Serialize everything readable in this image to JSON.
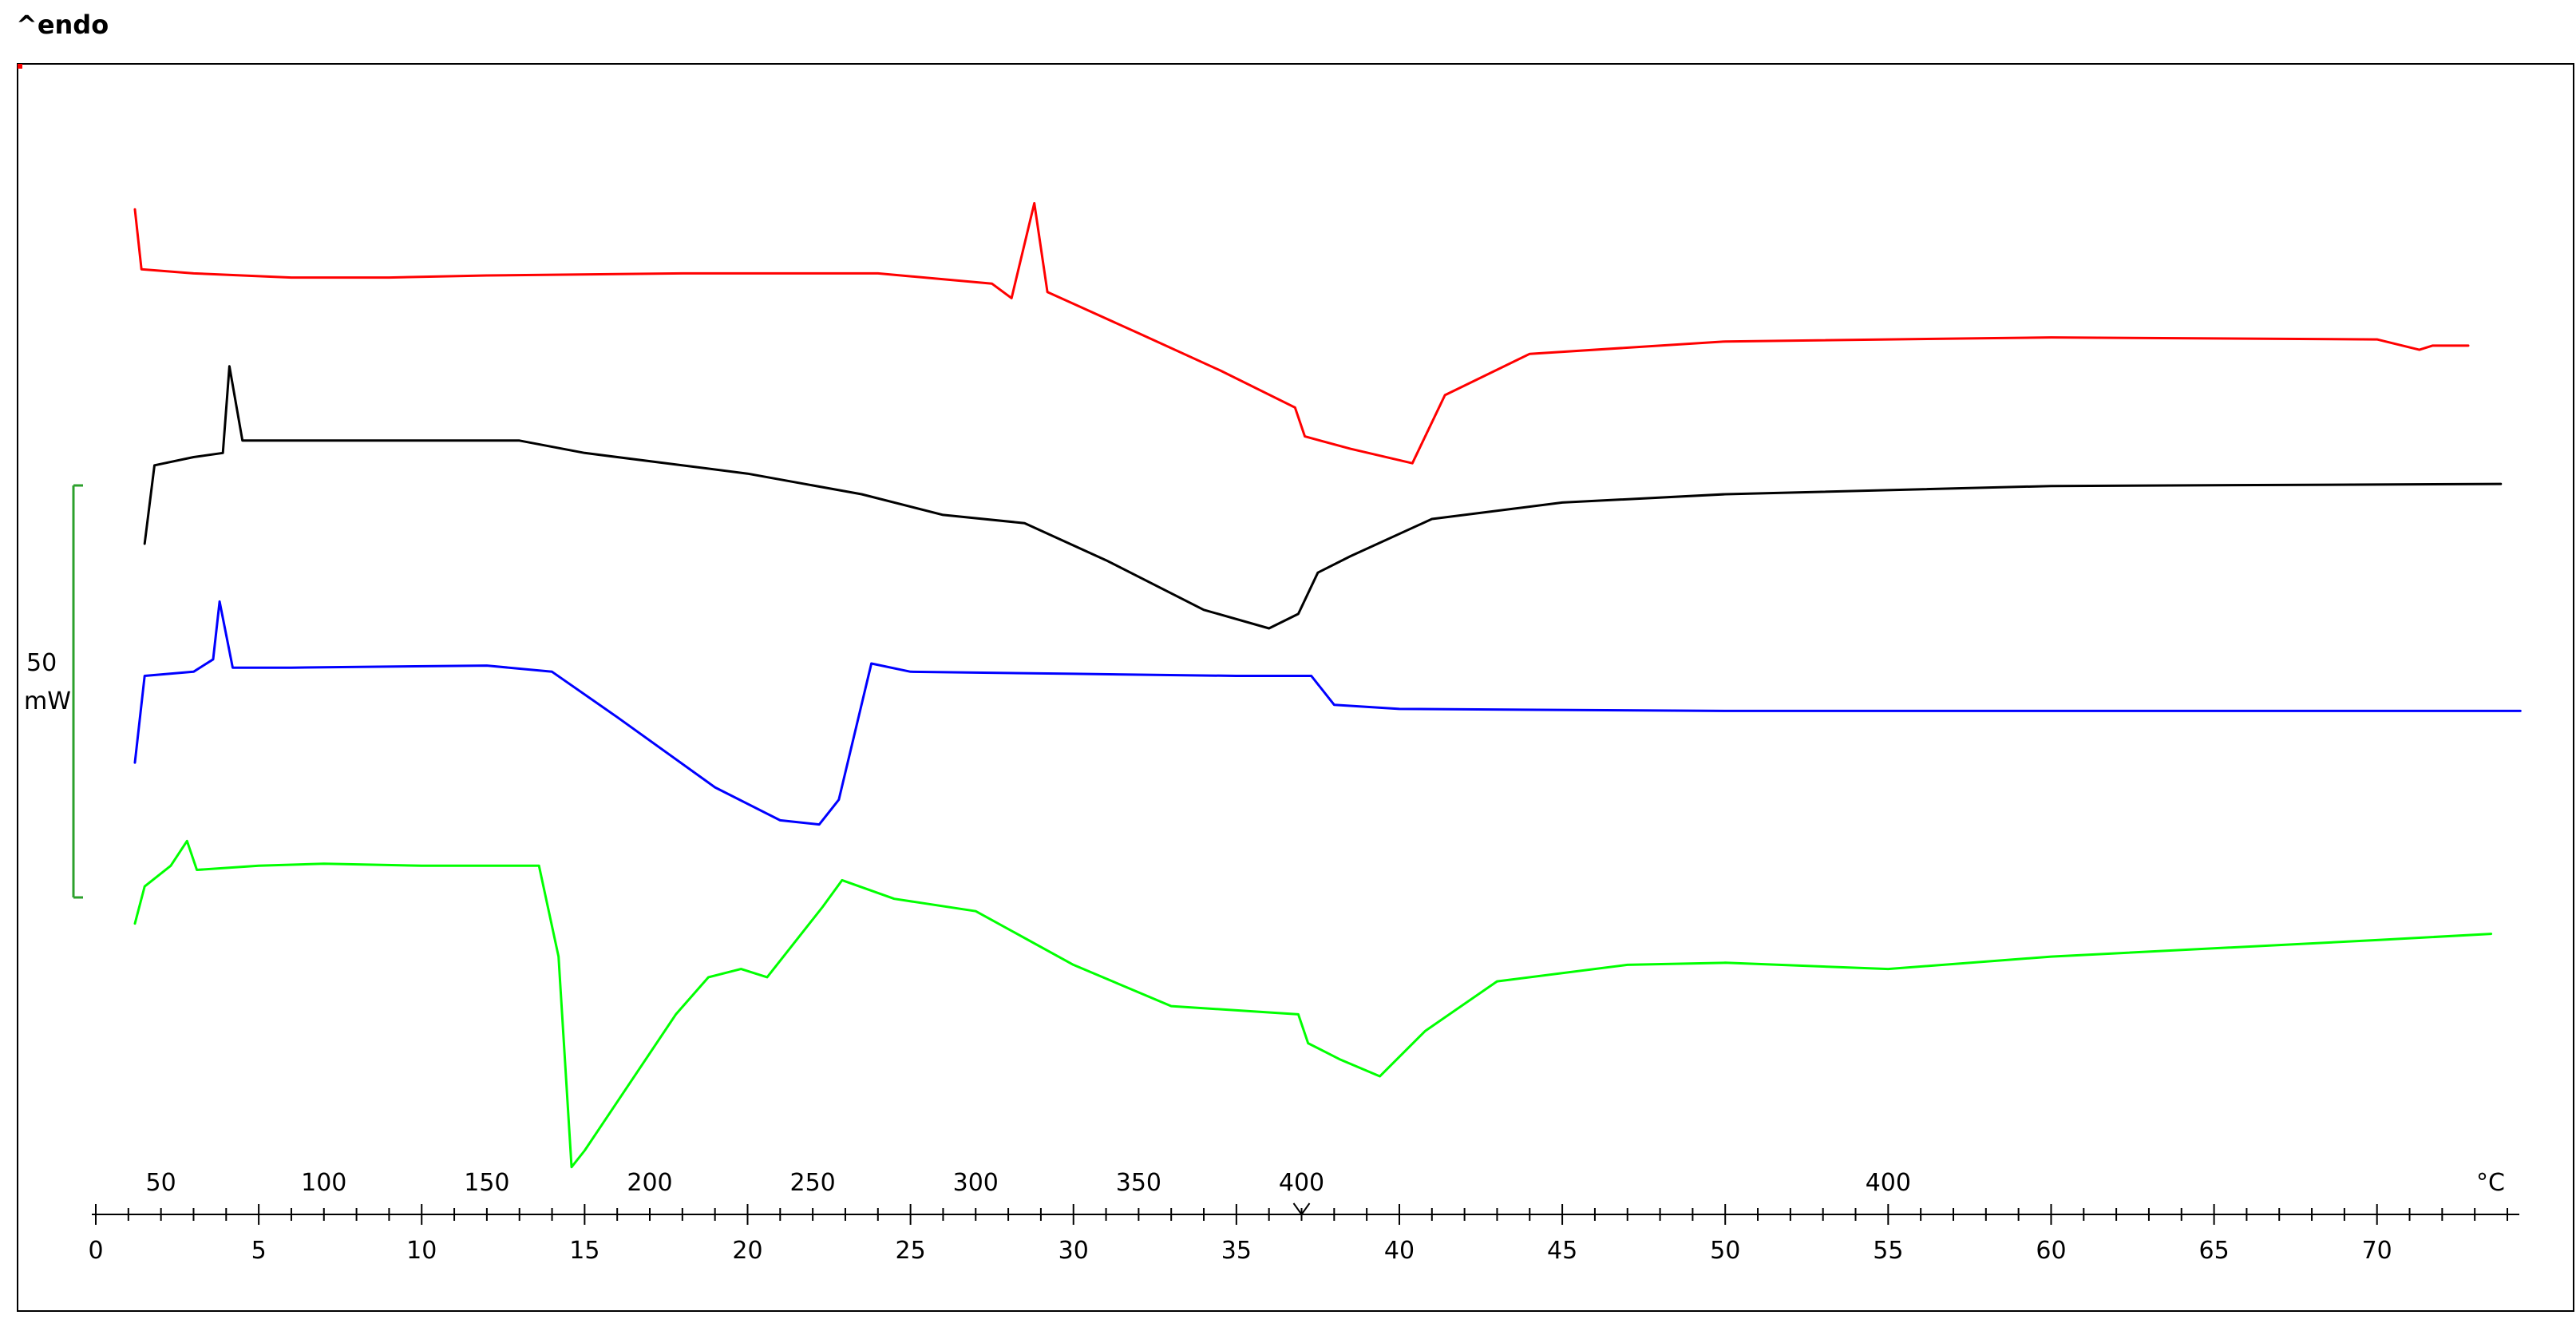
{
  "header": {
    "endo_label": "^endo"
  },
  "chart_data": {
    "type": "line",
    "title": "",
    "xlabel": "",
    "ylabel": "",
    "x_unit": "°C",
    "time_axis": {
      "range": [
        0,
        74
      ],
      "ticks": [
        0,
        5,
        10,
        15,
        20,
        25,
        30,
        35,
        40,
        45,
        50,
        55,
        60,
        65,
        70
      ]
    },
    "temperature_labels": [
      {
        "text": "50",
        "at_time": 2
      },
      {
        "text": "100",
        "at_time": 7
      },
      {
        "text": "150",
        "at_time": 12
      },
      {
        "text": "200",
        "at_time": 17
      },
      {
        "text": "250",
        "at_time": 22
      },
      {
        "text": "300",
        "at_time": 27
      },
      {
        "text": "350",
        "at_time": 32
      },
      {
        "text": "400",
        "at_time": 37
      },
      {
        "text": "400",
        "at_time": 55
      }
    ],
    "scale_bar": {
      "value": "50",
      "unit": "mW",
      "color": "#2ca02c"
    },
    "grid": false,
    "series": [
      {
        "color": "#ff0000",
        "points": [
          [
            1.2,
            1.6
          ],
          [
            1.4,
            0.15
          ],
          [
            3,
            0.05
          ],
          [
            6,
            -0.05
          ],
          [
            9,
            -0.05
          ],
          [
            12,
            0
          ],
          [
            18,
            0.05
          ],
          [
            24,
            0.05
          ],
          [
            27.5,
            -0.2
          ],
          [
            28.1,
            -0.55
          ],
          [
            28.8,
            1.75
          ],
          [
            29.2,
            -0.4
          ],
          [
            32,
            -1.4
          ],
          [
            34.5,
            -2.3
          ],
          [
            36.8,
            -3.2
          ],
          [
            37.1,
            -3.9
          ],
          [
            38.5,
            -4.2
          ],
          [
            40.4,
            -4.55
          ],
          [
            41.4,
            -2.9
          ],
          [
            44,
            -1.9
          ],
          [
            50,
            -1.6
          ],
          [
            60,
            -1.5
          ],
          [
            70,
            -1.55
          ],
          [
            71.3,
            -1.8
          ],
          [
            71.7,
            -1.7
          ],
          [
            72.8,
            -1.7
          ]
        ]
      },
      {
        "color": "#000000",
        "points": [
          [
            1.5,
            -6.5
          ],
          [
            1.8,
            -4.6
          ],
          [
            3,
            -4.4
          ],
          [
            3.9,
            -4.3
          ],
          [
            4.1,
            -2.2
          ],
          [
            4.5,
            -4.0
          ],
          [
            7,
            -4.0
          ],
          [
            13,
            -4.0
          ],
          [
            15,
            -4.3
          ],
          [
            20,
            -4.8
          ],
          [
            23.5,
            -5.3
          ],
          [
            26,
            -5.8
          ],
          [
            28.5,
            -6.0
          ],
          [
            31,
            -6.9
          ],
          [
            34,
            -8.1
          ],
          [
            36,
            -8.55
          ],
          [
            36.9,
            -8.2
          ],
          [
            37.5,
            -7.2
          ],
          [
            38.5,
            -6.8
          ],
          [
            41,
            -5.9
          ],
          [
            45,
            -5.5
          ],
          [
            50,
            -5.3
          ],
          [
            60,
            -5.1
          ],
          [
            73.8,
            -5.05
          ]
        ]
      },
      {
        "color": "#0000ff",
        "points": [
          [
            1.2,
            -11.8
          ],
          [
            1.5,
            -9.7
          ],
          [
            3,
            -9.6
          ],
          [
            3.6,
            -9.3
          ],
          [
            3.8,
            -7.9
          ],
          [
            4.2,
            -9.5
          ],
          [
            6,
            -9.5
          ],
          [
            12,
            -9.45
          ],
          [
            14,
            -9.6
          ],
          [
            16,
            -10.7
          ],
          [
            19,
            -12.4
          ],
          [
            21,
            -13.2
          ],
          [
            22.2,
            -13.3
          ],
          [
            22.8,
            -12.7
          ],
          [
            23.8,
            -9.4
          ],
          [
            25,
            -9.6
          ],
          [
            30,
            -9.65
          ],
          [
            35,
            -9.7
          ],
          [
            37.3,
            -9.7
          ],
          [
            38,
            -10.4
          ],
          [
            40,
            -10.5
          ],
          [
            50,
            -10.55
          ],
          [
            74.4,
            -10.55
          ]
        ]
      },
      {
        "color": "#00ff00",
        "points": [
          [
            1.2,
            -15.7
          ],
          [
            1.5,
            -14.8
          ],
          [
            2.3,
            -14.3
          ],
          [
            2.8,
            -13.7
          ],
          [
            3.1,
            -14.4
          ],
          [
            5,
            -14.3
          ],
          [
            7,
            -14.25
          ],
          [
            10,
            -14.3
          ],
          [
            13.6,
            -14.3
          ],
          [
            14.2,
            -16.5
          ],
          [
            14.6,
            -21.6
          ],
          [
            15,
            -21.2
          ],
          [
            17.8,
            -17.9
          ],
          [
            18.8,
            -17.0
          ],
          [
            19.8,
            -16.8
          ],
          [
            20.6,
            -17.0
          ],
          [
            22.3,
            -15.3
          ],
          [
            22.9,
            -14.65
          ],
          [
            24.5,
            -15.1
          ],
          [
            27,
            -15.4
          ],
          [
            30,
            -16.7
          ],
          [
            33,
            -17.7
          ],
          [
            36.9,
            -17.9
          ],
          [
            37.2,
            -18.6
          ],
          [
            38.2,
            -19.0
          ],
          [
            39.4,
            -19.4
          ],
          [
            40.8,
            -18.3
          ],
          [
            43,
            -17.1
          ],
          [
            47,
            -16.7
          ],
          [
            50,
            -16.65
          ],
          [
            55,
            -16.8
          ],
          [
            60,
            -16.5
          ],
          [
            70,
            -16.1
          ],
          [
            73.5,
            -15.95
          ]
        ]
      }
    ]
  }
}
